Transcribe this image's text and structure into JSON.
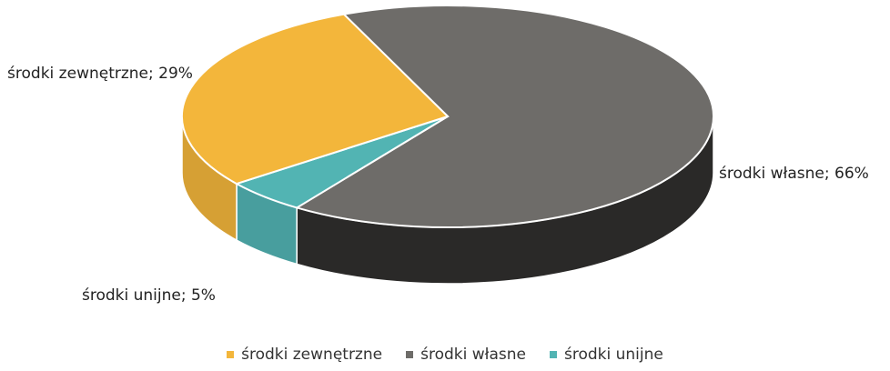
{
  "chart_data": {
    "type": "pie3d",
    "categories": [
      "środki zewnętrzne",
      "środki własne",
      "środki unijne"
    ],
    "values": [
      29,
      66,
      5
    ],
    "value_labels": [
      "środki zewnętrzne; 29%",
      "środki własne; 66%",
      "środki unijne; 5%"
    ],
    "colors": [
      "#f3b63b",
      "#6e6c69",
      "#52b4b3"
    ],
    "legend": "bottom"
  }
}
